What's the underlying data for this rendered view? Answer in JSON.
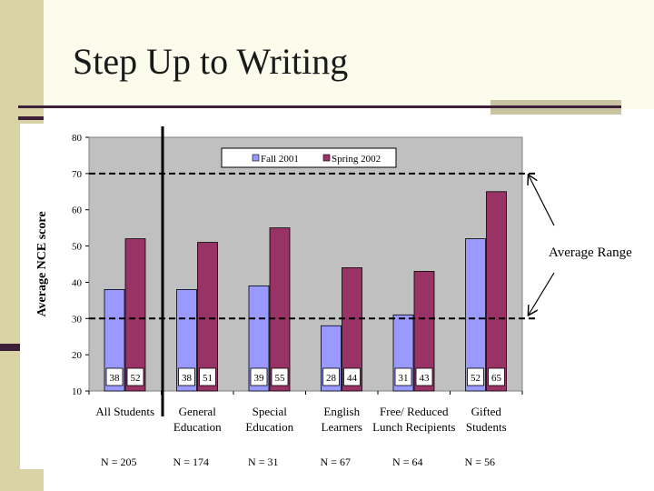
{
  "slide": {
    "title": "Step Up to Writing"
  },
  "colors": {
    "fall": "#9999ff",
    "spring": "#993366",
    "plot_bg": "#c0c0c0"
  },
  "chart_data": {
    "type": "bar",
    "title": "",
    "ylabel": "Average NCE score",
    "xlabel": "",
    "ylim": [
      10,
      80
    ],
    "yticks": [
      "80",
      "70",
      "60",
      "50",
      "40",
      "30",
      "20",
      "10"
    ],
    "categories": [
      [
        "All Students"
      ],
      [
        "General",
        "Education"
      ],
      [
        "Special",
        "Education"
      ],
      [
        "English",
        "Learners"
      ],
      [
        "Free/ Reduced",
        "Lunch Recipients"
      ],
      [
        "Gifted",
        "Students"
      ]
    ],
    "series": [
      {
        "name": "Fall 2001",
        "values": [
          38,
          38,
          39,
          28,
          31,
          52
        ],
        "labels": [
          "38",
          "38",
          "39",
          "28",
          "31",
          "52"
        ]
      },
      {
        "name": "Spring 2002",
        "values": [
          52,
          51,
          55,
          44,
          43,
          65
        ],
        "labels": [
          "52",
          "51",
          "55",
          "44",
          "43",
          "65"
        ]
      }
    ],
    "n_labels": [
      "N = 205",
      "N = 174",
      "N = 31",
      "N = 67",
      "N = 64",
      "N = 56"
    ],
    "reference_lines": [
      70,
      30
    ],
    "annotation": "Average Range",
    "legend_position": "top"
  }
}
